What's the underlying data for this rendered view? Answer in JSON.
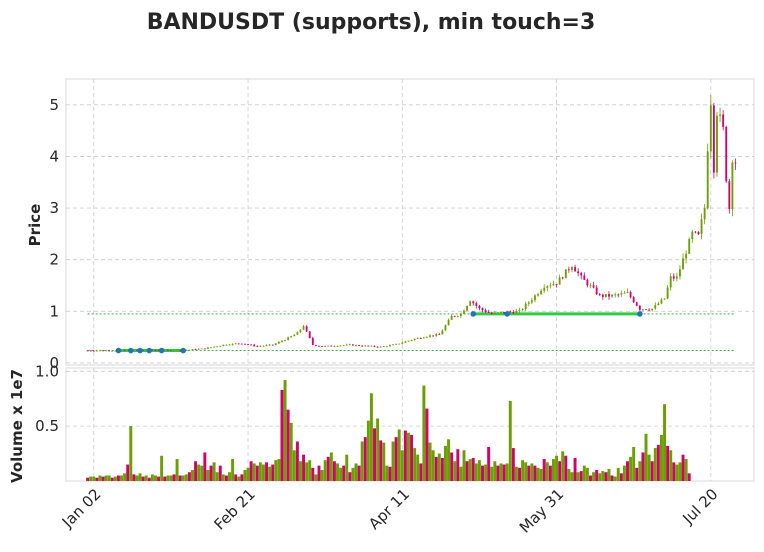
{
  "chart_data": {
    "type": "candlestick",
    "title": "BANDUSDT (supports), min touch=3",
    "ylabel": "Price",
    "volume_ylabel": "Volume x 1e7",
    "x_tick_labels": [
      "Jan 02",
      "Feb 21",
      "Apr 11",
      "May 31",
      "Jul 20"
    ],
    "x_tick_day": [
      2,
      52,
      102,
      152,
      202
    ],
    "x_range": [
      -7,
      216
    ],
    "price_ylim": [
      0,
      5.5
    ],
    "price_yticks": [
      0,
      1,
      2,
      3,
      4,
      5
    ],
    "volume_ylim": [
      0,
      1.0
    ],
    "volume_yticks": [
      0.5,
      1.0
    ],
    "grid": true,
    "colors": {
      "up": "#6b9e00",
      "down": "#d4006a",
      "support_line": "#2ecc40",
      "support_dotted": "#2ca02c",
      "touch_point": "#1f77b4"
    },
    "support_levels": [
      {
        "price": 0.24,
        "segment": [
          10,
          31
        ],
        "touches": [
          10,
          14,
          17,
          20,
          24,
          31
        ]
      },
      {
        "price": 0.95,
        "segment": [
          125,
          179
        ],
        "touches": [
          125,
          136,
          179
        ]
      }
    ],
    "price_anchors": [
      [
        0,
        0.24
      ],
      [
        10,
        0.24
      ],
      [
        20,
        0.25
      ],
      [
        30,
        0.24
      ],
      [
        38,
        0.28
      ],
      [
        45,
        0.36
      ],
      [
        50,
        0.38
      ],
      [
        55,
        0.32
      ],
      [
        60,
        0.35
      ],
      [
        65,
        0.48
      ],
      [
        68,
        0.58
      ],
      [
        70,
        0.72
      ],
      [
        73,
        0.35
      ],
      [
        76,
        0.32
      ],
      [
        85,
        0.35
      ],
      [
        95,
        0.31
      ],
      [
        100,
        0.36
      ],
      [
        105,
        0.45
      ],
      [
        110,
        0.52
      ],
      [
        114,
        0.55
      ],
      [
        118,
        0.9
      ],
      [
        121,
        0.95
      ],
      [
        124,
        1.22
      ],
      [
        127,
        1.05
      ],
      [
        131,
        0.95
      ],
      [
        135,
        0.98
      ],
      [
        140,
        1.0
      ],
      [
        145,
        1.3
      ],
      [
        148,
        1.5
      ],
      [
        152,
        1.55
      ],
      [
        157,
        1.9
      ],
      [
        160,
        1.65
      ],
      [
        163,
        1.48
      ],
      [
        166,
        1.3
      ],
      [
        170,
        1.3
      ],
      [
        175,
        1.35
      ],
      [
        179,
        1.05
      ],
      [
        183,
        1.05
      ],
      [
        187,
        1.25
      ],
      [
        189,
        1.65
      ],
      [
        191,
        1.65
      ],
      [
        193,
        2.0
      ],
      [
        196,
        2.5
      ],
      [
        198,
        2.45
      ],
      [
        200,
        3.0
      ],
      [
        201,
        4.2
      ],
      [
        202,
        5.1
      ],
      [
        203,
        3.8
      ],
      [
        204,
        4.9
      ],
      [
        206,
        4.5
      ],
      [
        207,
        3.6
      ],
      [
        208,
        3.0
      ],
      [
        209,
        4.0
      ],
      [
        210,
        3.9
      ]
    ],
    "volume": [
      0.03,
      0.04,
      0.04,
      0.03,
      0.05,
      0.04,
      0.05,
      0.05,
      0.03,
      0.04,
      0.05,
      0.05,
      0.07,
      0.15,
      0.5,
      0.06,
      0.05,
      0.07,
      0.04,
      0.05,
      0.03,
      0.06,
      0.05,
      0.04,
      0.23,
      0.04,
      0.05,
      0.05,
      0.06,
      0.2,
      0.05,
      0.05,
      0.06,
      0.08,
      0.1,
      0.18,
      0.15,
      0.14,
      0.26,
      0.1,
      0.14,
      0.17,
      0.08,
      0.14,
      0.06,
      0.05,
      0.08,
      0.2,
      0.06,
      0.04,
      0.06,
      0.1,
      0.12,
      0.18,
      0.16,
      0.14,
      0.17,
      0.15,
      0.17,
      0.13,
      0.15,
      0.19,
      0.2,
      0.83,
      0.92,
      0.65,
      0.53,
      0.28,
      0.36,
      0.18,
      0.24,
      0.17,
      0.19,
      0.12,
      0.06,
      0.14,
      0.1,
      0.19,
      0.22,
      0.26,
      0.18,
      0.16,
      0.12,
      0.14,
      0.24,
      0.08,
      0.12,
      0.16,
      0.14,
      0.36,
      0.4,
      0.55,
      0.8,
      0.48,
      0.57,
      0.37,
      0.35,
      0.14,
      0.13,
      0.36,
      0.4,
      0.47,
      0.28,
      0.46,
      0.44,
      0.42,
      0.3,
      0.24,
      0.16,
      0.87,
      0.66,
      0.35,
      0.28,
      0.22,
      0.25,
      0.21,
      0.32,
      0.38,
      0.26,
      0.18,
      0.29,
      0.13,
      0.28,
      0.18,
      0.2,
      0.21,
      0.16,
      0.19,
      0.14,
      0.15,
      0.31,
      0.13,
      0.18,
      0.14,
      0.16,
      0.15,
      0.16,
      0.73,
      0.3,
      0.13,
      0.12,
      0.19,
      0.17,
      0.14,
      0.16,
      0.14,
      0.12,
      0.11,
      0.2,
      0.17,
      0.14,
      0.2,
      0.23,
      0.18,
      0.27,
      0.23,
      0.11,
      0.08,
      0.21,
      0.08,
      0.09,
      0.14,
      0.12,
      0.05,
      0.08,
      0.1,
      0.07,
      0.09,
      0.08,
      0.11,
      0.05,
      0.04,
      0.12,
      0.07,
      0.14,
      0.18,
      0.22,
      0.31,
      0.12,
      0.18,
      0.26,
      0.43,
      0.24,
      0.18,
      0.3,
      0.33,
      0.42,
      0.7,
      0.32,
      0.28,
      0.17,
      0.15,
      0.17,
      0.24,
      0.2,
      0.07
    ]
  }
}
